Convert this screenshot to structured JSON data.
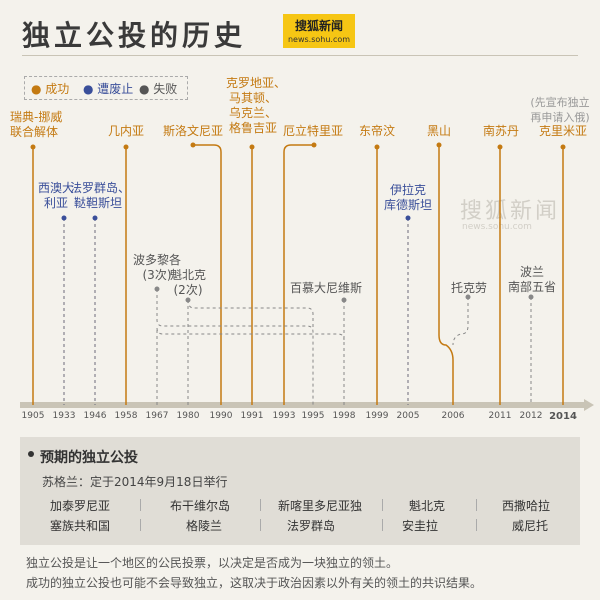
{
  "title": "独立公投的历史",
  "logo": {
    "cn": "搜狐新闻",
    "en": "news.sohu.com"
  },
  "watermark": {
    "cn": "搜狐新闻",
    "en": "news.sohu.com"
  },
  "legend": [
    {
      "label": "成功",
      "color": "#c47a12"
    },
    {
      "label": "遭废止",
      "color": "#3a4f9a"
    },
    {
      "label": "失败",
      "color": "#777777"
    }
  ],
  "years": [
    "1905",
    "1933",
    "1946",
    "1958",
    "1967",
    "1980",
    "1990",
    "1991",
    "1993",
    "1995",
    "1998",
    "1999",
    "2005",
    "2006",
    "2011",
    "2012",
    "2014"
  ],
  "labels": {
    "norway": "瑞典-挪威",
    "norway2": "联合解体",
    "wa1": "西澳大",
    "wa2": "利亚",
    "faroe1": "法罗群岛、",
    "faroe2": "鞑靼斯坦",
    "guinea": "几内亚",
    "slovenia": "斯洛文尼亚",
    "croatia1": "克罗地亚、",
    "croatia2": "马其顿、",
    "croatia3": "乌克兰、",
    "croatia4": "格鲁吉亚",
    "eritrea": "厄立特里亚",
    "timor": "东帝汶",
    "montenegro": "黑山",
    "ssudan": "南苏丹",
    "crimea_note1": "(先宣布独立",
    "crimea_note2": "再申请入俄)",
    "crimea": "克里米亚",
    "pr1": "波多黎各",
    "pr2": "(3次)",
    "qc1": "魁北克",
    "qc2": "(2次)",
    "bermuda": "百慕大尼维斯",
    "kurd1": "伊拉克",
    "kurd2": "库德斯坦",
    "tokelau": "托克劳",
    "poland1": "波兰",
    "poland2": "南部五省"
  },
  "upcoming": {
    "title": "预期的独立公投",
    "scotland": "苏格兰：定于2014年9月18日举行",
    "row1": [
      "加泰罗尼亚",
      "布干维尔岛",
      "新喀里多尼亚独",
      "魁北克",
      "西撒哈拉"
    ],
    "row2": [
      "塞族共和国",
      "格陵兰",
      "法罗群岛",
      "安圭拉",
      "威尼托"
    ]
  },
  "notes": [
    "独立公投是让一个地区的公民投票，以决定是否成为一块独立的领土。",
    "成功的独立公投也可能不会导致独立，这取决于政治因素以外有关的领土的共识结果。"
  ]
}
